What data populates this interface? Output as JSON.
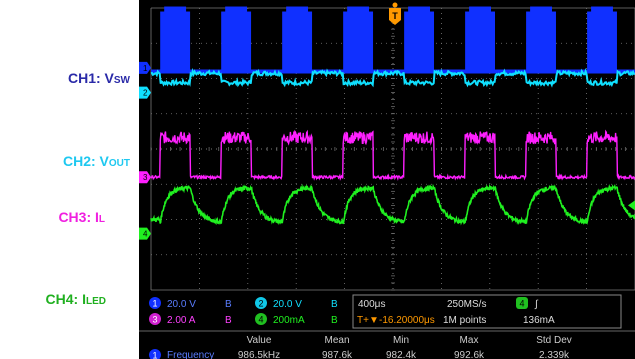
{
  "channel_labels": [
    {
      "name": "CH1: V",
      "sub": "SW",
      "color": "#2a2aa8"
    },
    {
      "name": "CH2: V",
      "sub": "OUT",
      "color": "#1ec8f0"
    },
    {
      "name": "CH3: I",
      "sub": "L",
      "color": "#f020e0"
    },
    {
      "name": "CH4: I",
      "sub": "LED",
      "color": "#20b020"
    }
  ],
  "colors": {
    "ch1": "#1030ff",
    "ch2": "#10e0ff",
    "ch3": "#ff20ff",
    "ch4": "#20f020",
    "trigger": "#ff9900",
    "grid": "#7a7a7a",
    "background": "#000000"
  },
  "channel_markers": [
    "1",
    "2",
    "3",
    "4"
  ],
  "trigger_marker": "T",
  "settings": {
    "ch1_scale": "20.0 V",
    "ch2_scale": "20.0 V",
    "ch3_scale": "2.00 A",
    "ch4_scale": "200mA",
    "timebase": "400μs",
    "sample_rate": "250MS/s",
    "trigger_pos": "-16.20000μs",
    "record_length": "1M points",
    "trigger_ch": "4",
    "trigger_level": "136mA",
    "bw_symbol": "B",
    "slope_symbol": "∫",
    "trigger_pos_icon": "T+▼"
  },
  "measurements": {
    "headers": [
      "Value",
      "Mean",
      "Min",
      "Max",
      "Std Dev"
    ],
    "row_ch": "1",
    "row_label": "Frequency",
    "row_values": [
      "986.5kHz",
      "987.6k",
      "982.4k",
      "992.6k",
      "2.339k"
    ]
  },
  "chart_data": {
    "type": "line",
    "title": "",
    "xlabel": "",
    "ylabel": "",
    "xlim": [
      0,
      10
    ],
    "ylim": [
      -4,
      4
    ],
    "grid": true,
    "x_unit_per_div": "400μs",
    "burst_period_div": 1.26,
    "burst_duty": 0.49,
    "first_burst_start_div": 0.19,
    "series": [
      {
        "name": "CH1: VSW",
        "scale": "20.0 V/div",
        "low_div": 2.2,
        "high_div": 3.9,
        "desc_div": "switching bursts"
      },
      {
        "name": "CH2: VOUT",
        "scale": "20.0 V/div",
        "low_div": 1.8,
        "high_div": 2.2
      },
      {
        "name": "CH3: IL",
        "scale": "2.00 A/div",
        "low_div": -0.8,
        "high_div": 0.4
      },
      {
        "name": "CH4: ILED",
        "scale": "200mA/div",
        "low_div": -2.1,
        "high_div": -1.1
      }
    ]
  }
}
